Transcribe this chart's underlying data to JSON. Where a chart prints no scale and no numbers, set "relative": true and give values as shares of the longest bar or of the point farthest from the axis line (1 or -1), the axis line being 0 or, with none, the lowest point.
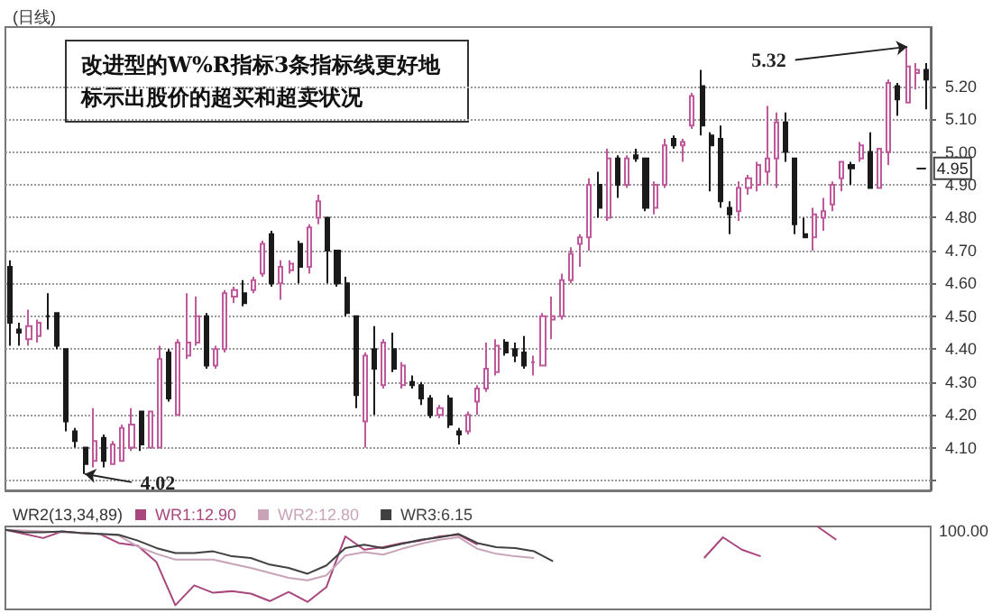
{
  "chart_data": [
    {
      "type": "candlestick",
      "title": "(日线)",
      "categories": [
        null,
        null,
        null,
        null,
        null,
        null,
        null,
        null,
        null,
        null,
        null,
        null,
        null,
        null,
        null,
        null,
        null,
        null,
        null,
        null,
        null,
        null,
        null,
        null,
        null,
        null,
        null,
        null,
        null,
        null,
        null,
        null,
        null,
        null,
        null,
        null,
        null,
        null,
        null,
        null,
        null,
        null,
        null,
        null,
        null,
        null,
        null,
        null,
        null,
        null,
        null,
        null,
        null,
        null,
        null,
        null,
        null,
        null,
        null,
        null,
        null,
        null,
        null,
        null,
        null,
        null,
        null,
        null,
        null,
        null,
        null,
        null,
        null,
        null,
        null,
        null,
        null,
        null,
        null,
        null,
        null,
        null,
        null,
        null,
        null,
        null,
        null,
        null,
        null,
        null,
        null,
        null,
        null,
        null,
        null,
        null,
        null,
        null,
        null
      ],
      "ohlc": [
        [
          4.65,
          4.67,
          4.41,
          4.48
        ],
        [
          4.46,
          4.48,
          4.41,
          4.45
        ],
        [
          4.43,
          4.52,
          4.41,
          4.47
        ],
        [
          4.44,
          4.49,
          4.42,
          4.48
        ],
        [
          4.5,
          4.57,
          4.46,
          4.5
        ],
        [
          4.51,
          4.51,
          4.4,
          4.41
        ],
        [
          4.4,
          4.4,
          4.15,
          4.18
        ],
        [
          4.15,
          4.16,
          4.1,
          4.12
        ],
        [
          4.1,
          4.1,
          4.02,
          4.05
        ],
        [
          4.06,
          4.22,
          4.04,
          4.12
        ],
        [
          4.13,
          4.14,
          4.04,
          4.06
        ],
        [
          4.05,
          4.12,
          4.05,
          4.11
        ],
        [
          4.06,
          4.17,
          4.06,
          4.16
        ],
        [
          4.1,
          4.22,
          4.09,
          4.17
        ],
        [
          4.21,
          4.21,
          4.09,
          4.11
        ],
        [
          4.1,
          4.21,
          4.1,
          4.21
        ],
        [
          4.1,
          4.41,
          4.1,
          4.37
        ],
        [
          4.39,
          4.4,
          4.24,
          4.25
        ],
        [
          4.2,
          4.43,
          4.2,
          4.42
        ],
        [
          4.38,
          4.57,
          4.37,
          4.42
        ],
        [
          4.42,
          4.56,
          4.41,
          4.5
        ],
        [
          4.5,
          4.51,
          4.34,
          4.35
        ],
        [
          4.35,
          4.41,
          4.34,
          4.4
        ],
        [
          4.4,
          4.58,
          4.39,
          4.57
        ],
        [
          4.56,
          4.59,
          4.54,
          4.58
        ],
        [
          4.57,
          4.61,
          4.53,
          4.54
        ],
        [
          4.58,
          4.62,
          4.57,
          4.61
        ],
        [
          4.63,
          4.73,
          4.62,
          4.72
        ],
        [
          4.75,
          4.76,
          4.59,
          4.6
        ],
        [
          4.6,
          4.67,
          4.55,
          4.65
        ],
        [
          4.64,
          4.67,
          4.63,
          4.66
        ],
        [
          4.72,
          4.73,
          4.6,
          4.65
        ],
        [
          4.65,
          4.78,
          4.63,
          4.77
        ],
        [
          4.8,
          4.87,
          4.78,
          4.85
        ],
        [
          4.8,
          4.8,
          4.6,
          4.7
        ],
        [
          4.7,
          4.7,
          4.59,
          4.6
        ],
        [
          4.6,
          4.62,
          4.5,
          4.51
        ],
        [
          4.5,
          4.5,
          4.22,
          4.26
        ],
        [
          4.18,
          4.39,
          4.1,
          4.38
        ],
        [
          4.4,
          4.47,
          4.2,
          4.34
        ],
        [
          4.29,
          4.43,
          4.28,
          4.42
        ],
        [
          4.4,
          4.45,
          4.33,
          4.34
        ],
        [
          4.29,
          4.36,
          4.28,
          4.35
        ],
        [
          4.3,
          4.32,
          4.28,
          4.29
        ],
        [
          4.29,
          4.3,
          4.23,
          4.25
        ],
        [
          4.25,
          4.26,
          4.19,
          4.2
        ],
        [
          4.2,
          4.23,
          4.19,
          4.22
        ],
        [
          4.25,
          4.26,
          4.16,
          4.17
        ],
        [
          4.15,
          4.16,
          4.11,
          4.14
        ],
        [
          4.15,
          4.21,
          4.14,
          4.2
        ],
        [
          4.24,
          4.29,
          4.2,
          4.28
        ],
        [
          4.28,
          4.42,
          4.27,
          4.34
        ],
        [
          4.33,
          4.43,
          4.32,
          4.41
        ],
        [
          4.42,
          4.43,
          4.38,
          4.39
        ],
        [
          4.4,
          4.42,
          4.36,
          4.38
        ],
        [
          4.39,
          4.44,
          4.34,
          4.35
        ],
        [
          4.36,
          4.38,
          4.32,
          4.36
        ],
        [
          4.35,
          4.51,
          4.35,
          4.5
        ],
        [
          4.49,
          4.56,
          4.43,
          4.5
        ],
        [
          4.5,
          4.63,
          4.49,
          4.61
        ],
        [
          4.61,
          4.71,
          4.6,
          4.69
        ],
        [
          4.72,
          4.75,
          4.65,
          4.74
        ],
        [
          4.74,
          4.92,
          4.7,
          4.9
        ],
        [
          4.9,
          4.94,
          4.8,
          4.83
        ],
        [
          4.8,
          5.01,
          4.79,
          4.98
        ],
        [
          4.98,
          4.99,
          4.86,
          4.9
        ],
        [
          4.9,
          4.99,
          4.89,
          4.98
        ],
        [
          4.99,
          5.01,
          4.97,
          4.98
        ],
        [
          4.98,
          4.98,
          4.82,
          4.83
        ],
        [
          4.83,
          4.91,
          4.81,
          4.9
        ],
        [
          4.9,
          5.04,
          4.89,
          5.02
        ],
        [
          5.04,
          5.05,
          5.01,
          5.02
        ],
        [
          5.02,
          5.04,
          4.97,
          5.03
        ],
        [
          5.08,
          5.18,
          5.07,
          5.17
        ],
        [
          5.2,
          5.25,
          5.05,
          5.08
        ],
        [
          5.05,
          5.06,
          4.88,
          5.02
        ],
        [
          5.04,
          5.08,
          4.83,
          4.85
        ],
        [
          4.83,
          4.85,
          4.75,
          4.81
        ],
        [
          4.82,
          4.91,
          4.79,
          4.89
        ],
        [
          4.89,
          4.93,
          4.87,
          4.92
        ],
        [
          4.9,
          4.97,
          4.88,
          4.96
        ],
        [
          4.94,
          5.14,
          4.9,
          4.98
        ],
        [
          4.98,
          5.12,
          4.89,
          5.09
        ],
        [
          5.09,
          5.12,
          4.97,
          5.0
        ],
        [
          4.98,
          4.98,
          4.75,
          4.78
        ],
        [
          4.75,
          4.8,
          4.74,
          4.74
        ],
        [
          4.74,
          4.83,
          4.7,
          4.81
        ],
        [
          4.8,
          4.86,
          4.76,
          4.82
        ],
        [
          4.84,
          4.91,
          4.82,
          4.9
        ],
        [
          4.92,
          4.97,
          4.88,
          4.97
        ],
        [
          4.96,
          4.97,
          4.9,
          4.95
        ],
        [
          4.98,
          5.03,
          4.97,
          5.02
        ],
        [
          5.0,
          5.06,
          4.89,
          4.89
        ],
        [
          4.89,
          5.01,
          4.89,
          5.01
        ],
        [
          5.0,
          5.22,
          4.96,
          5.21
        ],
        [
          5.2,
          5.21,
          5.11,
          5.16
        ],
        [
          5.15,
          5.32,
          5.15,
          5.26
        ],
        [
          5.24,
          5.27,
          5.19,
          5.25
        ],
        [
          5.25,
          5.27,
          5.13,
          5.22
        ]
      ],
      "colors": [
        "#1a1a1a",
        "#1a1a1a",
        "#c0589c",
        "#c0589c",
        "#1a1a1a",
        "#1a1a1a",
        "#1a1a1a",
        "#1a1a1a",
        "#1a1a1a",
        "#c0589c",
        "#1a1a1a",
        "#c0589c",
        "#c0589c",
        "#c0589c",
        "#1a1a1a",
        "#c0589c",
        "#c0589c",
        "#1a1a1a",
        "#c0589c",
        "#c0589c",
        "#c0589c",
        "#1a1a1a",
        "#c0589c",
        "#c0589c",
        "#c0589c",
        "#1a1a1a",
        "#c0589c",
        "#c0589c",
        "#1a1a1a",
        "#c0589c",
        "#c0589c",
        "#1a1a1a",
        "#c0589c",
        "#c0589c",
        "#1a1a1a",
        "#1a1a1a",
        "#1a1a1a",
        "#1a1a1a",
        "#c0589c",
        "#1a1a1a",
        "#c0589c",
        "#1a1a1a",
        "#c0589c",
        "#1a1a1a",
        "#1a1a1a",
        "#1a1a1a",
        "#c0589c",
        "#1a1a1a",
        "#1a1a1a",
        "#c0589c",
        "#c0589c",
        "#c0589c",
        "#c0589c",
        "#1a1a1a",
        "#1a1a1a",
        "#1a1a1a",
        "#c0589c",
        "#c0589c",
        "#c0589c",
        "#c0589c",
        "#c0589c",
        "#c0589c",
        "#c0589c",
        "#1a1a1a",
        "#c0589c",
        "#1a1a1a",
        "#c0589c",
        "#1a1a1a",
        "#1a1a1a",
        "#c0589c",
        "#c0589c",
        "#1a1a1a",
        "#c0589c",
        "#c0589c",
        "#1a1a1a",
        "#1a1a1a",
        "#1a1a1a",
        "#1a1a1a",
        "#c0589c",
        "#c0589c",
        "#c0589c",
        "#c0589c",
        "#c0589c",
        "#1a1a1a",
        "#1a1a1a",
        "#1a1a1a",
        "#c0589c",
        "#c0589c",
        "#c0589c",
        "#c0589c",
        "#1a1a1a",
        "#c0589c",
        "#1a1a1a",
        "#c0589c",
        "#c0589c",
        "#1a1a1a",
        "#c0589c",
        "#c0589c",
        "#1a1a1a"
      ],
      "ylim": [
        3.97,
        5.38
      ],
      "yticks": [
        {
          "value": 4.0,
          "label": null
        },
        {
          "value": 4.1,
          "label": "4.10"
        },
        {
          "value": 4.2,
          "label": "4.20"
        },
        {
          "value": 4.3,
          "label": "4.30"
        },
        {
          "value": 4.4,
          "label": "4.40"
        },
        {
          "value": 4.5,
          "label": "4.50"
        },
        {
          "value": 4.6,
          "label": "4.60"
        },
        {
          "value": 4.7,
          "label": "4.70"
        },
        {
          "value": 4.8,
          "label": "4.80"
        },
        {
          "value": 4.9,
          "label": "4.90"
        },
        {
          "value": 5.0,
          "label": "5.00"
        },
        {
          "value": 5.1,
          "label": "5.10"
        },
        {
          "value": 5.2,
          "label": "5.20"
        }
      ],
      "tick_labels": "y",
      "grid": "y",
      "ref_lines": [
        {
          "axis": "y",
          "value": 4.95,
          "label": "4.95"
        }
      ],
      "annotations": [
        "改进型的W%R指标3条指标线更好地标示出股价的超买和超卖状况",
        "4.02",
        "5.32"
      ]
    },
    {
      "type": "line",
      "title": "WR2(13,34,89)",
      "relative": true,
      "tick_labels": false,
      "legend": "top left",
      "categories": [
        null,
        null,
        null,
        null,
        null,
        null,
        null,
        null,
        null,
        null,
        null,
        null,
        null,
        null,
        null,
        null,
        null,
        null,
        null,
        null,
        null,
        null,
        null,
        null,
        null,
        null,
        null,
        null,
        null,
        null,
        null,
        null,
        null,
        null,
        null,
        null,
        null,
        null,
        null,
        null,
        null,
        null,
        null,
        null,
        null,
        null,
        null,
        null,
        null,
        null
      ],
      "annotations": [
        "100.00"
      ],
      "series": [
        {
          "name": "WR1:12.90",
          "color": "#a8467e",
          "values": [
            0.96,
            0.91,
            0.86,
            0.94,
            0.92,
            0.91,
            0.8,
            0.77,
            0.57,
            0.05,
            0.29,
            0.2,
            0.22,
            0.19,
            0.1,
            0.21,
            0.09,
            0.27,
            0.88,
            0.72,
            0.75,
            0.8,
            0.83,
            0.88,
            0.9,
            0.78,
            null,
            null,
            null,
            null,
            null,
            null,
            null,
            null,
            null,
            null,
            null,
            0.62,
            0.87,
            0.72,
            0.64,
            null,
            null,
            1.0,
            0.84,
            null,
            null,
            null,
            null,
            null
          ]
        },
        {
          "name": "WR2:12.80",
          "color": "#c9a3b8",
          "values": [
            0.96,
            0.95,
            0.94,
            0.93,
            0.92,
            0.91,
            0.89,
            0.76,
            0.67,
            0.6,
            0.6,
            0.6,
            0.55,
            0.5,
            0.44,
            0.38,
            0.35,
            0.41,
            0.65,
            0.69,
            0.66,
            0.73,
            0.79,
            0.84,
            0.87,
            0.73,
            0.67,
            0.64,
            0.62,
            null,
            null,
            null,
            null,
            null,
            null,
            null,
            null,
            null,
            null,
            null,
            null,
            null,
            null,
            null,
            null,
            null,
            null,
            null,
            null,
            null
          ]
        },
        {
          "name": "WR3:6.15",
          "color": "#404040",
          "values": [
            0.96,
            0.93,
            0.93,
            0.94,
            0.92,
            0.91,
            0.9,
            0.83,
            0.74,
            0.68,
            0.68,
            0.7,
            0.64,
            0.62,
            0.54,
            0.5,
            0.43,
            0.53,
            0.74,
            0.78,
            0.74,
            0.79,
            0.84,
            0.87,
            0.91,
            0.8,
            0.75,
            0.74,
            0.7,
            0.58,
            null,
            null,
            null,
            null,
            null,
            null,
            null,
            null,
            null,
            null,
            null,
            null,
            null,
            null,
            null,
            null,
            null,
            null,
            null,
            null
          ]
        }
      ]
    }
  ]
}
